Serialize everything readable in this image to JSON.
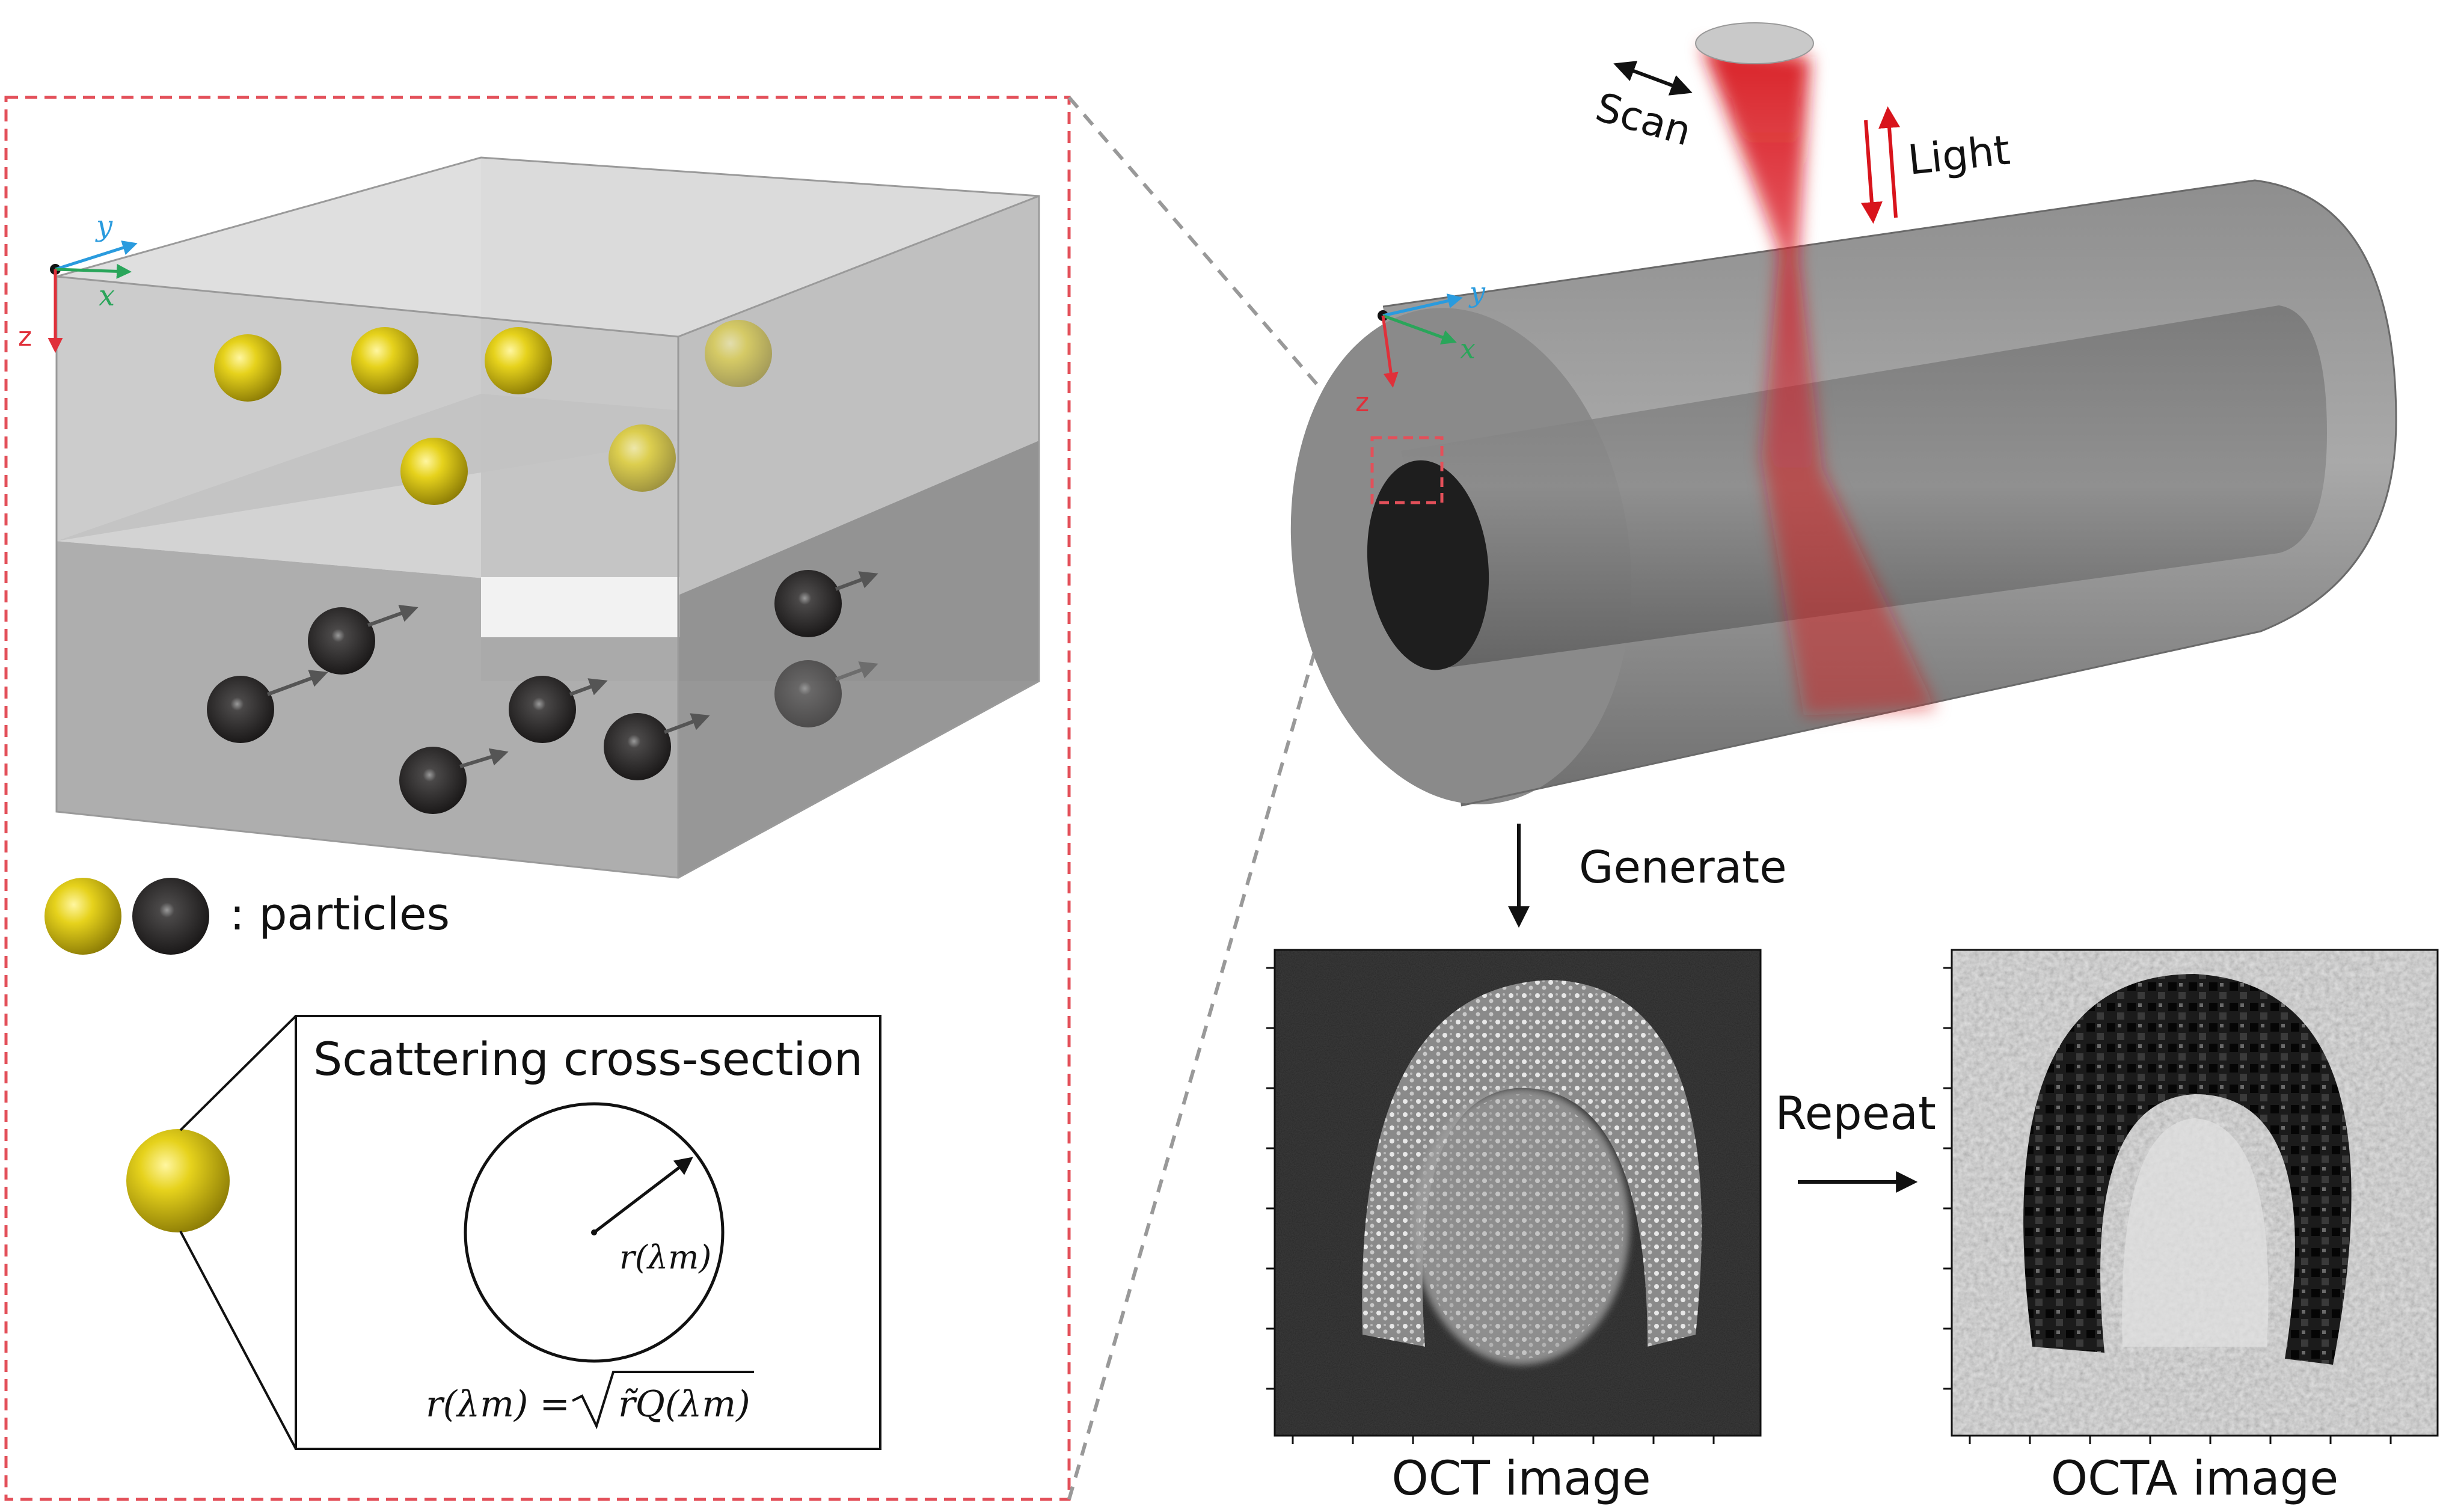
{
  "axes": {
    "x": "x",
    "y": "y",
    "z": "z"
  },
  "labels": {
    "scan": "Scan",
    "light": "Light",
    "generate": "Generate",
    "repeat": "Repeat",
    "particles": ": particles",
    "scattering_title": "Scattering cross-section",
    "radius": "r(λm)",
    "formula_lhs": "r(λm) =",
    "formula_rhs": "r̃Q(λm)",
    "oct_caption": "OCT image",
    "octa_caption": "OCTA image"
  },
  "colors": {
    "zoom_frame": "#e3505a",
    "beam": "#d8141c",
    "axis_x": "#2aa55a",
    "axis_y": "#2a9bde",
    "axis_z": "#e0303a",
    "particle_static": "#d8c512",
    "particle_moving": "#2e2c2c"
  }
}
